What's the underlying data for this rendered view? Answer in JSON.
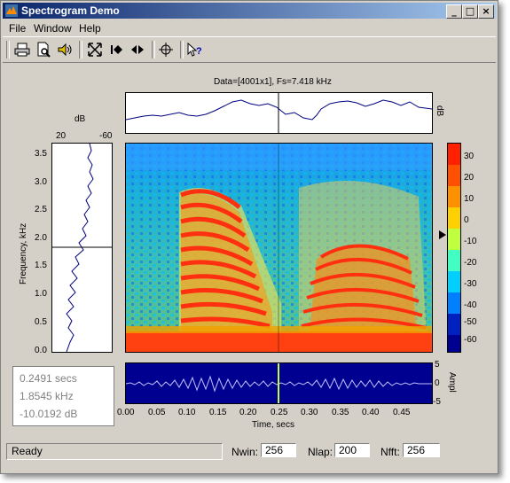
{
  "window": {
    "title": "Spectrogram Demo"
  },
  "menu": {
    "file": "File",
    "window": "Window",
    "help": "Help"
  },
  "toolbar": {
    "icons": [
      "printer-icon",
      "print-preview-icon",
      "speaker-icon",
      "zoom-fit-icon",
      "play-stop-icon",
      "play-icon",
      "crosshair-icon",
      "whats-this-icon"
    ]
  },
  "signal_info": "Data=[4001x1], Fs=7.418 kHz",
  "spectrum_panel": {
    "ylabel": "dB",
    "xlabel": "dB",
    "xticks": [
      "20",
      "-60"
    ],
    "freq_axis_label": "Frequency, kHz",
    "freq_ticks": [
      "0.0",
      "0.5",
      "1.0",
      "1.5",
      "2.0",
      "2.5",
      "3.0",
      "3.5"
    ],
    "cursor_freq_khz": 1.8545
  },
  "colorbar": {
    "ticks": [
      "30",
      "20",
      "10",
      "0",
      "-10",
      "-20",
      "-30",
      "-40",
      "-50",
      "-60"
    ],
    "marker_db": -10.0192
  },
  "time_panel": {
    "ylabel": "Ampl",
    "yticks": [
      "5",
      "0",
      "-5"
    ],
    "xlabel": "Time, secs",
    "xticks": [
      "0.00",
      "0.05",
      "0.10",
      "0.15",
      "0.20",
      "0.25",
      "0.30",
      "0.35",
      "0.40",
      "0.45"
    ],
    "cursor_time_s": 0.2491
  },
  "readout": {
    "time": "0.2491 secs",
    "freq": "1.8545 kHz",
    "level": "-10.0192 dB"
  },
  "status": "Ready",
  "params": {
    "nwin_label": "Nwin:",
    "nwin": "256",
    "nlap_label": "Nlap:",
    "nlap": "200",
    "nfft_label": "Nfft:",
    "nfft": "256"
  }
}
